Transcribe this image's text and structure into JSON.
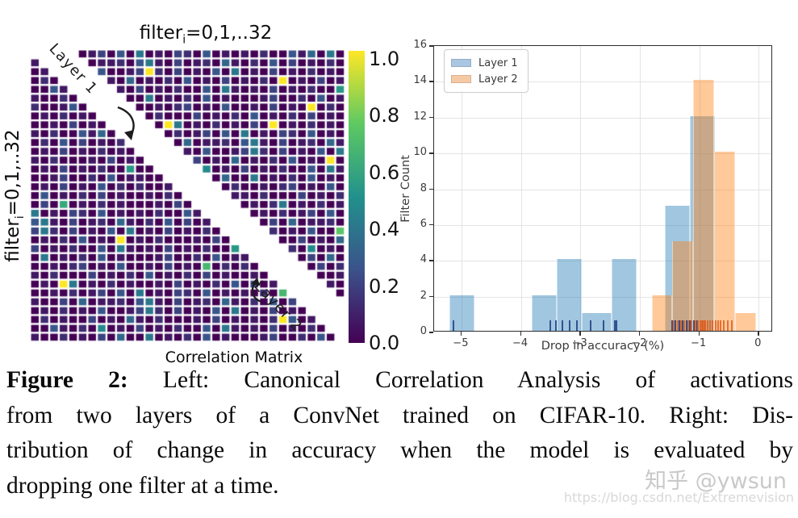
{
  "chart_data": [
    {
      "type": "heatmap",
      "title": "Correlation Matrix",
      "x_axis_label": {
        "prefix": "filter",
        "sub": "i",
        "suffix": "=0,1,..32"
      },
      "y_axis_label": {
        "prefix": "filter",
        "sub": "i",
        "suffix": "=0,1,..32"
      },
      "annotations": {
        "layer1": "Layer 1",
        "layer2": "Layer 2"
      },
      "layout": "lower triangle = Layer 1 correlations, upper triangle = Layer 2 correlations, white anti-diagonal band between them",
      "rows": 33,
      "cols": 33,
      "diagonal_band_width": 4,
      "colormap": "viridis",
      "colorbar": {
        "min": 0.0,
        "max": 1.0,
        "ticks": [
          "1.0",
          "0.8",
          "0.6",
          "0.4",
          "0.2",
          "0.0"
        ]
      },
      "value_encoding": "each char is hex 0-15; value = hex/15 mapped through viridis",
      "values_hex16": [
        "001020130406010320401010200415060",
        "100305011204610301205102040301020",
        "010201040013f20301040601030102010",
        "020100301050102040103010 20f010301",
        "004102070103010200406101030102008",
        "100201030500601020401000130020401",
        "20014010302001023010400103010f020",
        "010201040811020003010204010203010",
        "00103010204010f6010201030f0102010",
        "102004150600010201304060103204010",
        "020403010201003050112046103012051",
        "010301020100102010400136203010406",
        "1020001030102010030105010204010f0",
        "010301020080041020701030102004061",
        "001300204011002010305006010204010",
        "010301040202001401030200102301040",
        "04010203010010201040a110200030102",
        "030901020100010301020401026010201",
        "601032040101020041506000102013040",
        "46103012051020403010f010030501120",
        "36203010406010301020100102010400b",
        "010204010f01020001030102010030105",
        "301020040610103010200800410207010",
        "060102040100013002040110020103050",
        "001023010400103010a02020014010302",
        "102000301020401020301001020104001",
        "010f60102010010301020403010102010",
        "001020130406010320401010 20a415060",
        "100305011204610301205102040301020",
        "010201040013620301040601030102010",
        "0201003010510200010301 0102f4010d0",
        "004102070103010200406101030102008",
        "100201030500601020401000130020401"
      ]
    },
    {
      "type": "histogram",
      "xlabel": "Drop in accuracy (%)",
      "ylabel": "Filter Count",
      "xlim": [
        -5.46,
        0.24
      ],
      "ylim": [
        0,
        16
      ],
      "xticks": [
        -5,
        -4,
        -3,
        -2,
        -1,
        0
      ],
      "xtick_labels": [
        "−5",
        "−4",
        "−3",
        "−2",
        "−1",
        "0"
      ],
      "yticks": [
        0,
        2,
        4,
        6,
        8,
        10,
        12,
        14,
        16
      ],
      "grid": true,
      "legend_position": "upper left",
      "series": [
        {
          "name": "Layer 1",
          "fill": "rgba(31,119,180,0.42)",
          "legend_swatch": "#a9c6e2",
          "rug_color": "rgba(28,62,130,0.85)",
          "bars": [
            {
              "x0": -5.2,
              "x1": -4.78,
              "h": 2
            },
            {
              "x0": -3.82,
              "x1": -3.4,
              "h": 2
            },
            {
              "x0": -3.4,
              "x1": -2.98,
              "h": 4
            },
            {
              "x0": -2.98,
              "x1": -2.47,
              "h": 1
            },
            {
              "x0": -2.47,
              "x1": -2.05,
              "h": 4
            },
            {
              "x0": -1.58,
              "x1": -1.16,
              "h": 7
            },
            {
              "x0": -1.16,
              "x1": -0.74,
              "h": 12
            }
          ],
          "rug": [
            -5.15,
            -3.52,
            -3.42,
            -3.31,
            -3.19,
            -3.07,
            -2.84,
            -2.63,
            -2.44,
            -2.4,
            -1.47,
            -1.41,
            -1.35,
            -1.29,
            -1.23,
            -1.17,
            -1.11,
            -1.05
          ]
        },
        {
          "name": "Layer 2",
          "fill": "rgba(255,127,14,0.42)",
          "legend_swatch": "#f6c9a5",
          "rug_color": "rgba(222,90,25,0.8)",
          "bars": [
            {
              "x0": -1.8,
              "x1": -1.45,
              "h": 2
            },
            {
              "x0": -1.45,
              "x1": -1.1,
              "h": 5
            },
            {
              "x0": -1.1,
              "x1": -0.75,
              "h": 14
            },
            {
              "x0": -0.75,
              "x1": -0.4,
              "h": 10
            },
            {
              "x0": -0.4,
              "x1": -0.05,
              "h": 1
            }
          ],
          "rug": [
            -1.44,
            -1.38,
            -1.32,
            -1.26,
            -1.2,
            -1.14,
            -1.08,
            -1.03,
            -0.99,
            -0.97,
            -0.95,
            -0.93,
            -0.91,
            -0.87,
            -0.83,
            -0.79,
            -0.74,
            -0.7,
            -0.65,
            -0.6,
            -0.54,
            -0.47
          ]
        }
      ]
    }
  ],
  "caption": {
    "figure_label": "Figure 2:",
    "line1_rest": "  Left:  Canonical Correlation Analysis of activations",
    "line2": "from two layers of a ConvNet trained on CIFAR-10. Right: Dis-",
    "line3": "tribution of change in accuracy when the model is evaluated by",
    "line4": "dropping one filter at a time."
  },
  "watermark": {
    "zhihu": "知乎 @ywsun",
    "url": "https://blog.csdn.net/Extremevision"
  },
  "viridis_stops": [
    "#440154",
    "#3b528b",
    "#21918c",
    "#5ec962",
    "#fde725"
  ]
}
